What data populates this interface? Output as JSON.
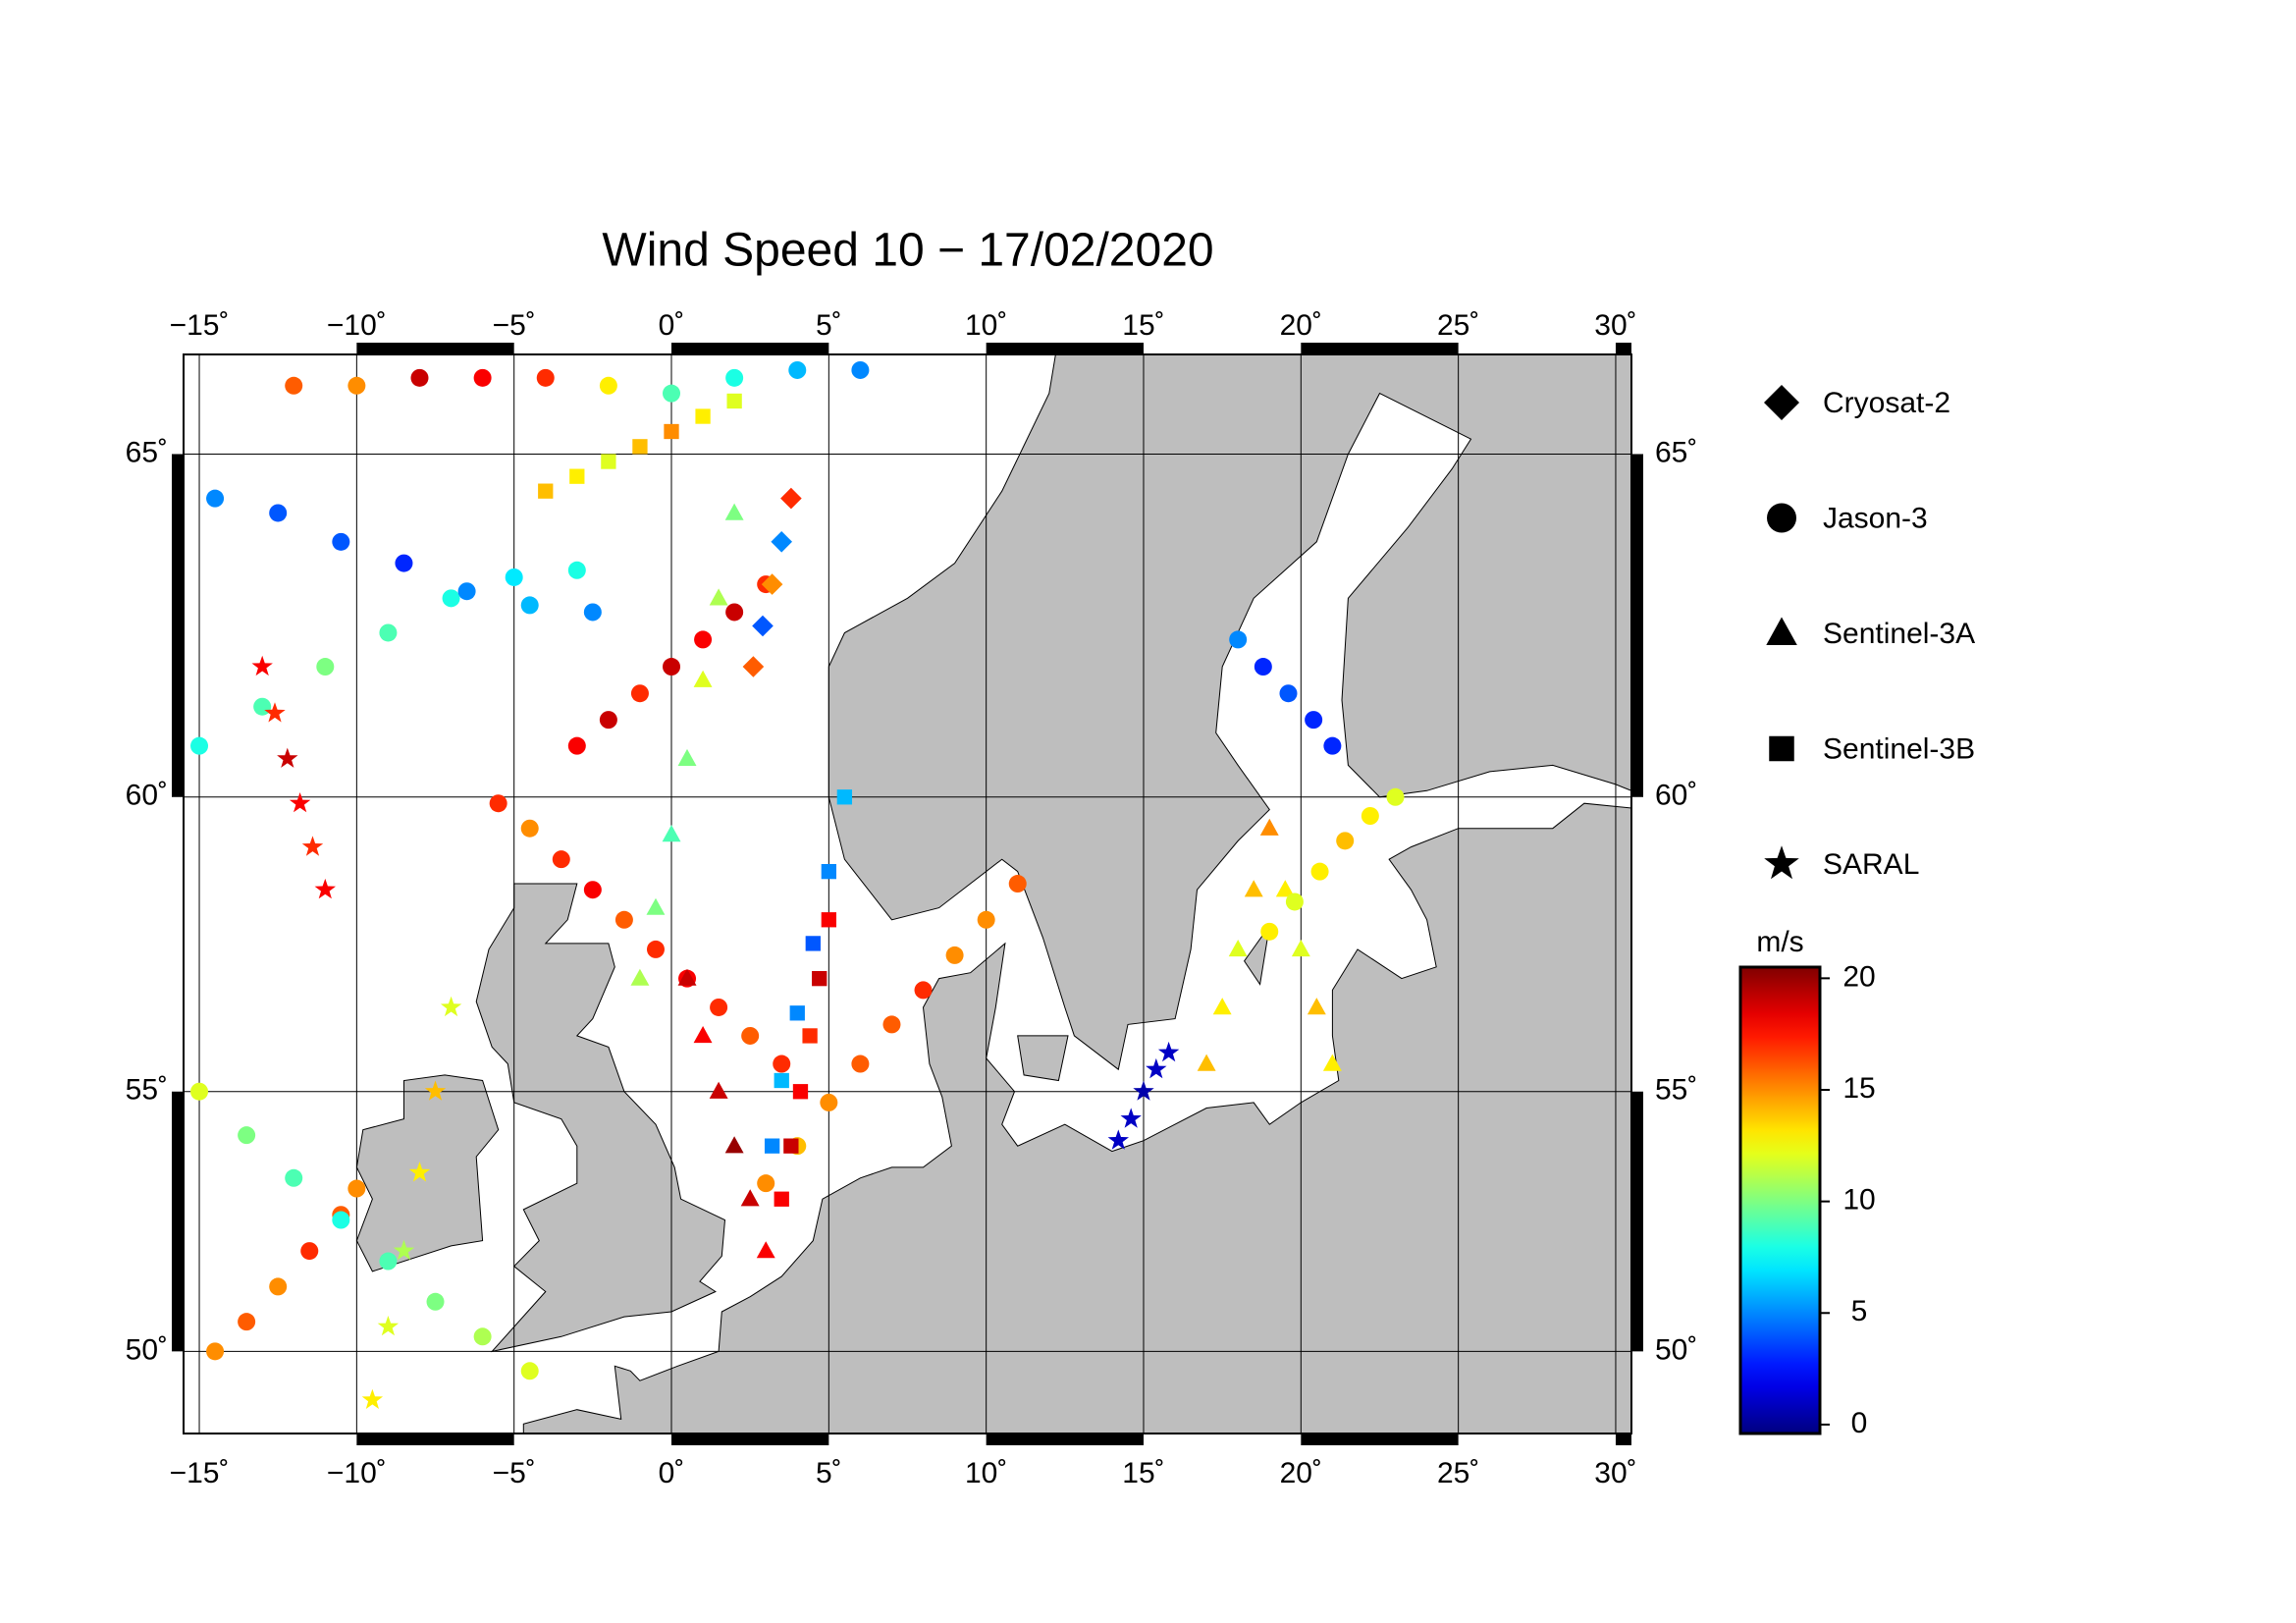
{
  "chart_data": {
    "type": "map",
    "title": "Wind Speed 10 − 17/02/2020",
    "xlim": [
      -15.5,
      30.5
    ],
    "ylim": [
      48.3,
      66.3
    ],
    "projection": "mercator",
    "xticks": [
      {
        "value": -15,
        "label": "−15˚"
      },
      {
        "value": -10,
        "label": "−10˚"
      },
      {
        "value": -5,
        "label": "−5˚"
      },
      {
        "value": 0,
        "label": "0˚"
      },
      {
        "value": 5,
        "label": "5˚"
      },
      {
        "value": 10,
        "label": "10˚"
      },
      {
        "value": 15,
        "label": "15˚"
      },
      {
        "value": 20,
        "label": "20˚"
      },
      {
        "value": 25,
        "label": "25˚"
      },
      {
        "value": 30,
        "label": "30˚"
      }
    ],
    "yticks": [
      {
        "value": 50,
        "label": "50˚"
      },
      {
        "value": 55,
        "label": "55˚"
      },
      {
        "value": 60,
        "label": "60˚"
      },
      {
        "value": 65,
        "label": "65˚"
      }
    ],
    "grid": true,
    "legend": [
      {
        "name": "Cryosat-2",
        "marker": "diamond"
      },
      {
        "name": "Jason-3",
        "marker": "circle"
      },
      {
        "name": "Sentinel-3A",
        "marker": "triangle"
      },
      {
        "name": "Sentinel-3B",
        "marker": "square"
      },
      {
        "name": "SARAL",
        "marker": "star"
      }
    ],
    "colorbar": {
      "label": "m/s",
      "colormap": "jet",
      "clim": [
        -0.4,
        20.5
      ],
      "ticks": [
        0,
        5,
        10,
        15,
        20
      ]
    },
    "tracks": [
      {
        "marker": "circle",
        "lon": [
          -5.5,
          -4.5,
          -3.5,
          -2.5,
          -1.5,
          -0.5,
          0.5,
          1.5,
          2.5,
          3.5
        ],
        "lat": [
          59.9,
          59.5,
          59,
          58.5,
          58,
          57.5,
          57,
          56.5,
          56,
          55.5
        ],
        "values": [
          17,
          15,
          17,
          18,
          16,
          17,
          18,
          17,
          16,
          17
        ]
      },
      {
        "marker": "circle",
        "lon": [
          3,
          4,
          5,
          6,
          7,
          8,
          9,
          10,
          11
        ],
        "lat": [
          53.3,
          54,
          54.8,
          55.5,
          56.2,
          56.8,
          57.4,
          58,
          58.6
        ],
        "values": [
          15,
          14,
          15,
          16,
          16,
          17,
          15,
          15,
          16
        ]
      },
      {
        "marker": "circle",
        "lon": [
          -15,
          -13,
          -11,
          -9,
          -7,
          -5,
          -3
        ],
        "lat": [
          60.8,
          61.4,
          62,
          62.5,
          63,
          63.3,
          63.4
        ],
        "values": [
          8,
          9,
          10,
          9,
          8,
          7,
          8
        ]
      },
      {
        "marker": "circle",
        "lon": [
          -14.5,
          -12.5,
          -10.5,
          -8.5,
          -6.5,
          -4.5,
          -2.5
        ],
        "lat": [
          64.4,
          64.2,
          63.8,
          63.5,
          63.1,
          62.9,
          62.8
        ],
        "values": [
          5,
          4,
          4,
          3,
          5,
          6,
          5
        ]
      },
      {
        "marker": "circle",
        "lon": [
          18,
          18.8,
          19.6,
          20.4,
          21
        ],
        "lat": [
          62.4,
          62,
          61.6,
          61.2,
          60.8
        ],
        "values": [
          5,
          3,
          4,
          3,
          3
        ]
      },
      {
        "marker": "circle",
        "lon": [
          -3,
          -2,
          -1,
          0,
          1,
          2,
          3
        ],
        "lat": [
          60.8,
          61.2,
          61.6,
          62,
          62.4,
          62.8,
          63.2
        ],
        "values": [
          18,
          19,
          17,
          19,
          18,
          19,
          17
        ]
      },
      {
        "marker": "triangle",
        "lon": [
          0.5,
          1,
          1.5,
          2,
          2.5,
          3
        ],
        "lat": [
          57,
          56,
          55,
          54,
          53,
          52
        ],
        "values": [
          19,
          18,
          19,
          20,
          19,
          18
        ]
      },
      {
        "marker": "square",
        "lon": [
          3.5,
          3.8,
          4.1,
          4.4,
          4.7,
          5
        ],
        "lat": [
          53,
          54,
          55,
          56,
          57,
          58
        ],
        "values": [
          18,
          19,
          18,
          17,
          19,
          18
        ]
      },
      {
        "marker": "square",
        "lon": [
          5.5,
          5,
          4.5,
          4,
          3.5,
          3.2
        ],
        "lat": [
          60,
          58.8,
          57.6,
          56.4,
          55.2,
          54
        ],
        "values": [
          6,
          5,
          4,
          5,
          6,
          5
        ]
      },
      {
        "marker": "star",
        "lon": [
          14.2,
          14.6,
          15,
          15.4,
          15.8
        ],
        "lat": [
          54.1,
          54.5,
          55,
          55.4,
          55.7
        ],
        "values": [
          1,
          1,
          0.5,
          1,
          1
        ]
      },
      {
        "marker": "circle",
        "lon": [
          -14.5,
          -13.5,
          -12.5,
          -11.5,
          -10.5,
          -10
        ],
        "lat": [
          50,
          50.6,
          51.3,
          52,
          52.7,
          53.2
        ],
        "values": [
          15,
          16,
          15,
          17,
          16,
          15
        ]
      },
      {
        "marker": "circle",
        "lon": [
          -15,
          -13.5,
          -12,
          -10.5,
          -9,
          -7.5,
          -6,
          -4.5
        ],
        "lat": [
          55,
          54.2,
          53.4,
          52.6,
          51.8,
          51,
          50.3,
          49.6
        ],
        "values": [
          12,
          10,
          9,
          8,
          9,
          10,
          11,
          12
        ]
      },
      {
        "marker": "triangle",
        "lon": [
          17,
          17.5,
          18,
          18.5,
          19,
          19.5,
          20,
          20.5,
          21
        ],
        "lat": [
          55.5,
          56.5,
          57.5,
          58.5,
          59.5,
          58.5,
          57.5,
          56.5,
          55.5
        ],
        "values": [
          14,
          13,
          12,
          14,
          15,
          13,
          12,
          14,
          13
        ]
      },
      {
        "marker": "circle",
        "lon": [
          19,
          19.8,
          20.6,
          21.4,
          22.2,
          23
        ],
        "lat": [
          57.8,
          58.3,
          58.8,
          59.3,
          59.7,
          60
        ],
        "values": [
          13,
          12,
          13,
          14,
          13,
          12
        ]
      },
      {
        "marker": "star",
        "lon": [
          -13,
          -12.6,
          -12.2,
          -11.8,
          -11.4,
          -11
        ],
        "lat": [
          62,
          61.3,
          60.6,
          59.9,
          59.2,
          58.5
        ],
        "values": [
          18,
          17,
          19,
          18,
          17,
          18
        ]
      },
      {
        "marker": "diamond",
        "lon": [
          2.6,
          2.9,
          3.2,
          3.5,
          3.8
        ],
        "lat": [
          62,
          62.6,
          63.2,
          63.8,
          64.4
        ],
        "values": [
          16,
          4,
          15,
          5,
          17
        ]
      },
      {
        "marker": "triangle",
        "lon": [
          -1,
          -0.5,
          0,
          0.5,
          1,
          1.5,
          2
        ],
        "lat": [
          57,
          58.2,
          59.4,
          60.6,
          61.8,
          63,
          64.2
        ],
        "values": [
          11,
          10,
          9,
          10,
          12,
          11,
          10
        ]
      },
      {
        "marker": "square",
        "lon": [
          -4,
          -3,
          -2,
          -1,
          0,
          1,
          2
        ],
        "lat": [
          64.5,
          64.7,
          64.9,
          65.1,
          65.3,
          65.5,
          65.7
        ],
        "values": [
          14,
          13,
          12,
          14,
          15,
          13,
          12
        ]
      },
      {
        "marker": "star",
        "lon": [
          -9.5,
          -9,
          -8.5,
          -8,
          -7.5,
          -7
        ],
        "lat": [
          49,
          50.5,
          52,
          53.5,
          55,
          56.5
        ],
        "values": [
          13,
          12,
          11,
          13,
          14,
          12
        ]
      },
      {
        "marker": "circle",
        "lon": [
          -12,
          -10,
          -8,
          -6,
          -4,
          -2,
          0,
          2,
          4,
          6
        ],
        "lat": [
          65.9,
          65.9,
          66,
          66,
          66,
          65.9,
          65.8,
          66,
          66.1,
          66.1
        ],
        "values": [
          16,
          15,
          19,
          18,
          17,
          13,
          9,
          8,
          6,
          5
        ]
      }
    ]
  }
}
